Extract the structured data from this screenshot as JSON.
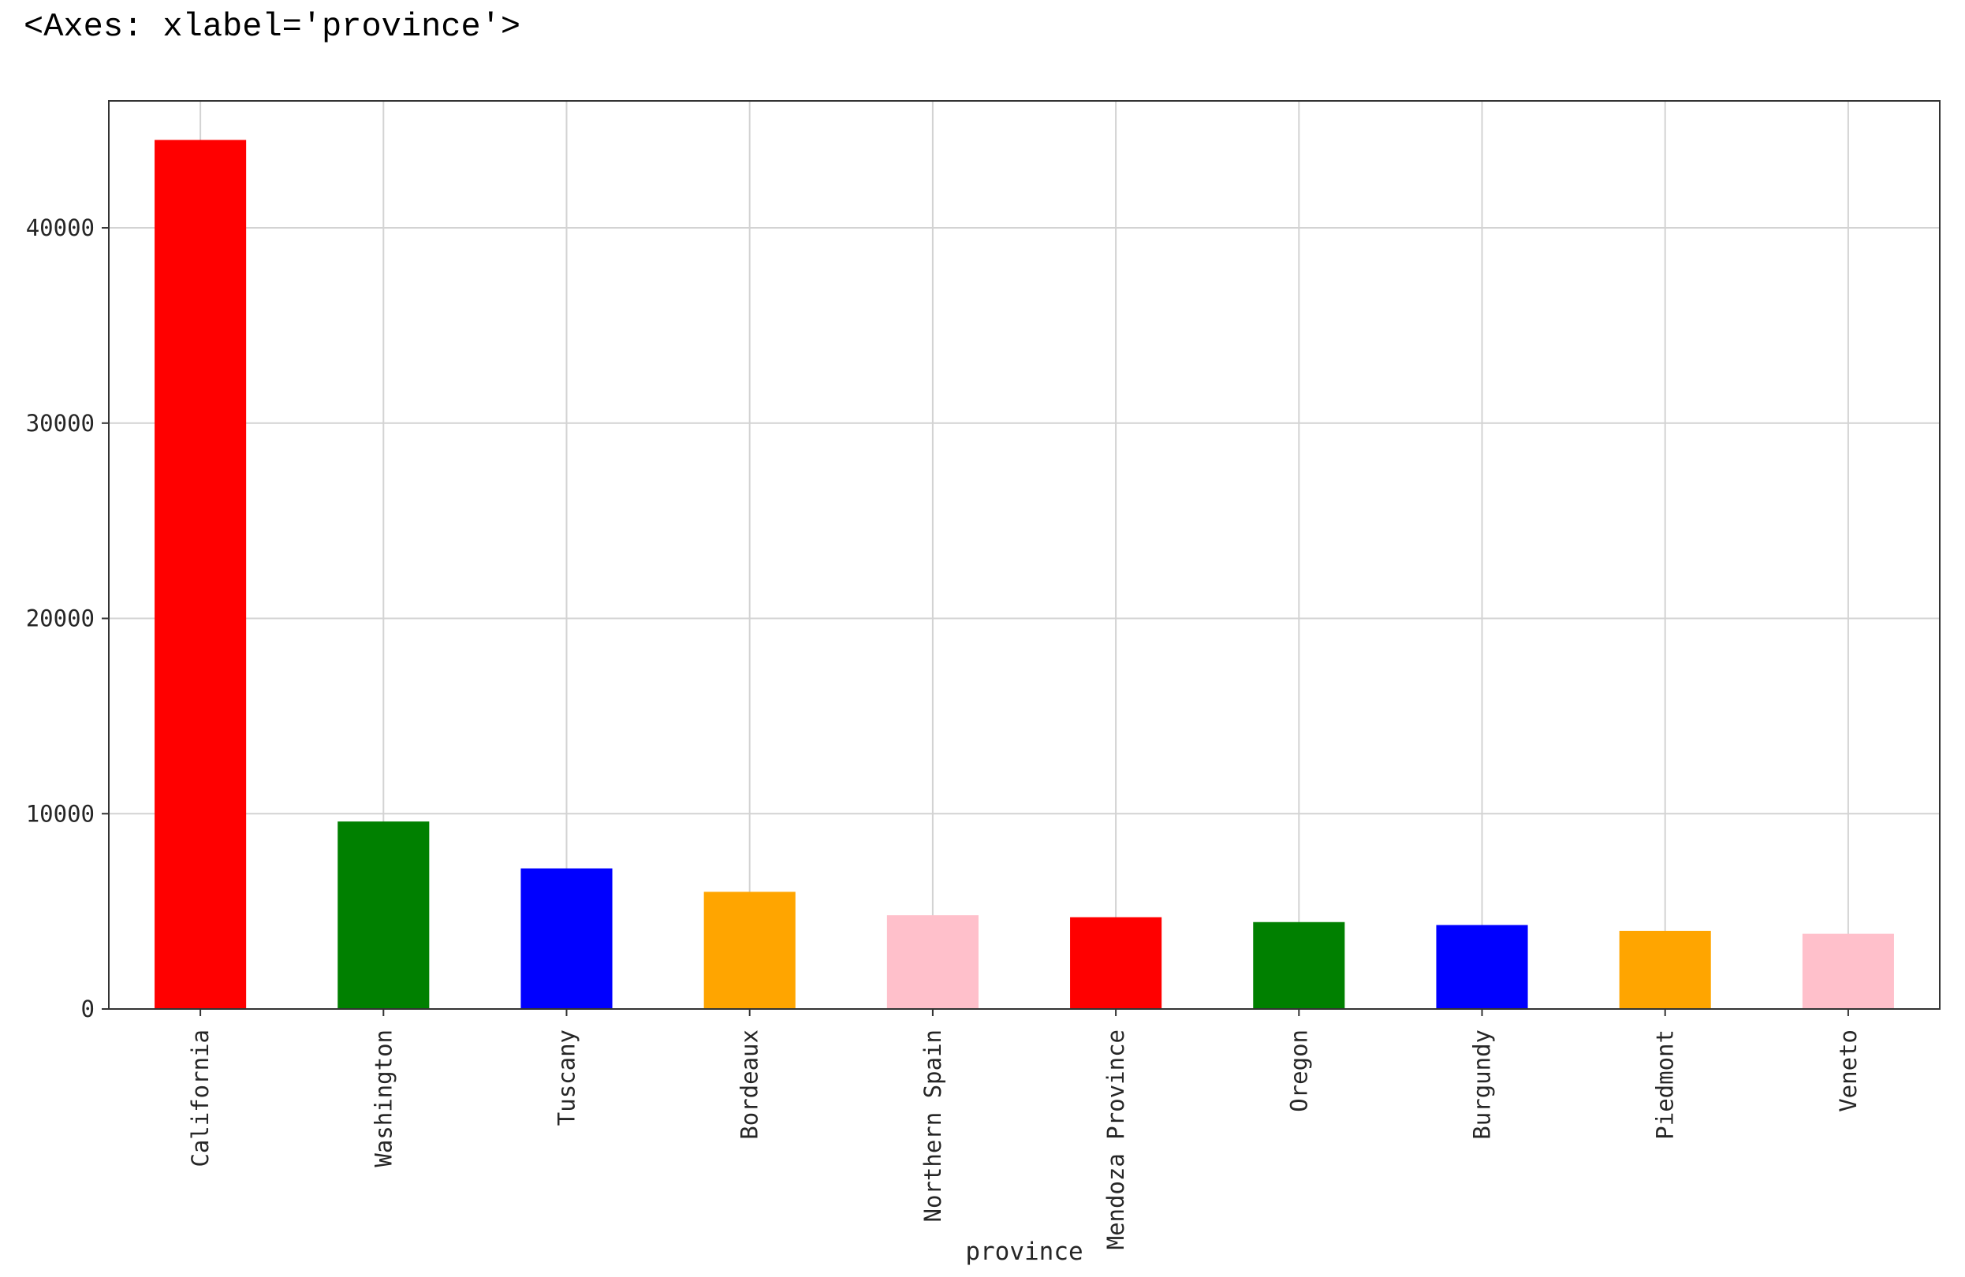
{
  "output_repr": "<Axes: xlabel='province'>",
  "chart_data": {
    "type": "bar",
    "categories": [
      "California",
      "Washington",
      "Tuscany",
      "Bordeaux",
      "Northern Spain",
      "Mendoza Province",
      "Oregon",
      "Burgundy",
      "Piedmont",
      "Veneto"
    ],
    "values": [
      44500,
      9600,
      7200,
      6000,
      4800,
      4700,
      4450,
      4300,
      4000,
      3850
    ],
    "colors": [
      "#ff0000",
      "#008000",
      "#0000ff",
      "#ffa500",
      "#ffc0cb",
      "#ff0000",
      "#008000",
      "#0000ff",
      "#ffa500",
      "#ffc0cb"
    ],
    "xlabel": "province",
    "ylabel": "",
    "ylim": [
      0,
      46500
    ],
    "yticks": [
      0,
      10000,
      20000,
      30000,
      40000
    ],
    "ytick_labels": [
      "0",
      "10000",
      "20000",
      "30000",
      "40000"
    ],
    "grid": true,
    "legend": false
  }
}
